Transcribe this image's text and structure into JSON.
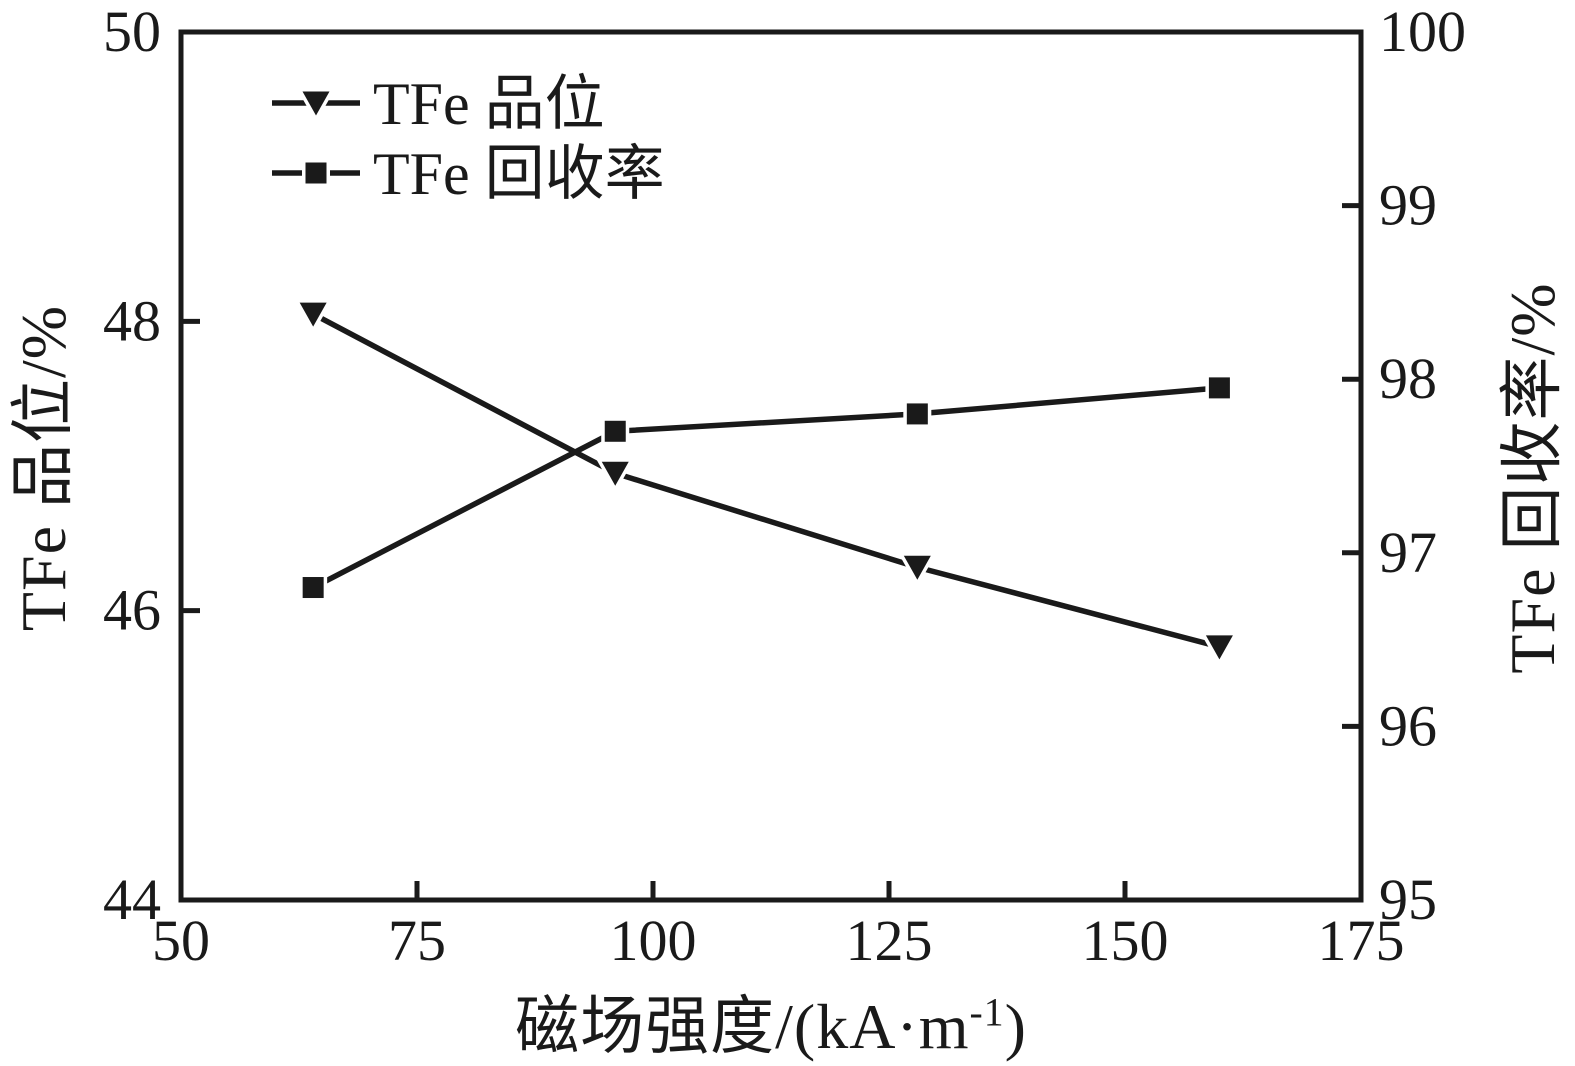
{
  "chart_data": {
    "type": "line",
    "title": "",
    "xlabel": "磁场强度/(kA·m⁻¹)",
    "xlabel_parts": {
      "prefix": "磁场强度/(kA·m",
      "sup": "-1",
      "suffix": ")"
    },
    "ylabel_left": "TFe 品位/%",
    "ylabel_right": "TFe 回收率/%",
    "x": [
      64,
      96,
      128,
      160
    ],
    "series": [
      {
        "name": "TFe 品位",
        "axis": "left",
        "marker": "triangle-down",
        "values": [
          48.05,
          46.95,
          46.3,
          45.75
        ]
      },
      {
        "name": "TFe 回收率",
        "axis": "right",
        "marker": "square",
        "values": [
          96.8,
          97.7,
          97.8,
          97.95
        ]
      }
    ],
    "x_axis": {
      "min": 50,
      "max": 175,
      "ticks": [
        50,
        75,
        100,
        125,
        150,
        175
      ]
    },
    "y_left": {
      "min": 44,
      "max": 50,
      "ticks": [
        44,
        46,
        48,
        50
      ]
    },
    "y_right": {
      "min": 95,
      "max": 100,
      "ticks": [
        95,
        96,
        97,
        98,
        99,
        100
      ]
    },
    "grid": false,
    "legend_position": "upper-left-inside",
    "colors": {
      "line": "#1a1a1a",
      "marker": "#1a1a1a",
      "background": "#ffffff",
      "text": "#1a1a1a"
    }
  },
  "legend": {
    "items": [
      {
        "label": "TFe 品位"
      },
      {
        "label": "TFe 回收率"
      }
    ]
  }
}
